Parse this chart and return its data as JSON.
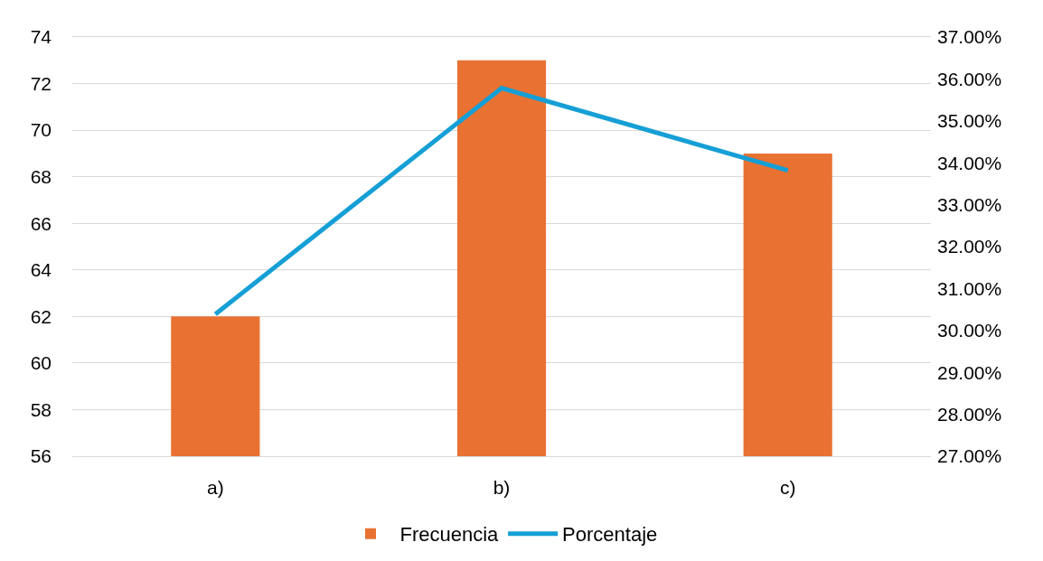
{
  "chart_data": {
    "type": "bar",
    "categories": [
      "a)",
      "b)",
      "c)"
    ],
    "series": [
      {
        "name": "Frecuencia",
        "color": "#e97132",
        "values": [
          62,
          73,
          69
        ]
      },
      {
        "name": "Porcentaje",
        "type": "line",
        "axis": "y2",
        "color": "#159fd6",
        "values": [
          30.39,
          35.78,
          33.82
        ]
      }
    ],
    "ylim": [
      56,
      74
    ],
    "yticks": [
      56,
      58,
      60,
      62,
      64,
      66,
      68,
      70,
      72,
      74
    ],
    "y2lim": [
      27,
      37
    ],
    "y2ticks": [
      {
        "value": 27,
        "label": "27.00%"
      },
      {
        "value": 28,
        "label": "28.00%"
      },
      {
        "value": 29,
        "label": "29.00%"
      },
      {
        "value": 30,
        "label": "30.00%"
      },
      {
        "value": 31,
        "label": "31.00%"
      },
      {
        "value": 32,
        "label": "32.00%"
      },
      {
        "value": 33,
        "label": "33.00%"
      },
      {
        "value": 34,
        "label": "34.00%"
      },
      {
        "value": 35,
        "label": "35.00%"
      },
      {
        "value": 36,
        "label": "36.00%"
      },
      {
        "value": 37,
        "label": "37.00%"
      }
    ],
    "grid": "y",
    "legend": "bottom",
    "marker": "none",
    "line_style": "solid"
  }
}
